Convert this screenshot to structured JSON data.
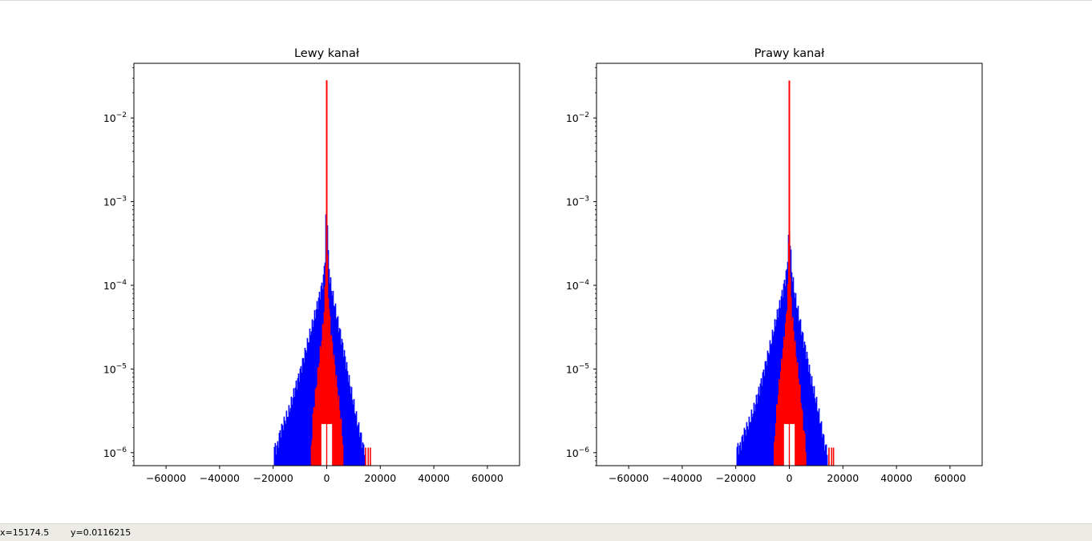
{
  "status": {
    "x_readout": "x=15174.5",
    "y_readout": "y=0.0116215"
  },
  "chart_data": [
    {
      "type": "histogram",
      "title": "Lewy kanał",
      "xlim": [
        -72000,
        72000
      ],
      "ylim": [
        7e-07,
        0.045
      ],
      "y_scale": "log",
      "x_ticks": [
        -60000,
        -40000,
        -20000,
        0,
        20000,
        40000,
        60000
      ],
      "x_tick_labels": [
        "−60000",
        "−40000",
        "−20000",
        "0",
        "20000",
        "40000",
        "60000"
      ],
      "y_ticks": [
        1e-06,
        1e-05,
        0.0001,
        0.001,
        0.01
      ],
      "y_tick_labels": [
        "10",
        "10",
        "10",
        "10",
        "10"
      ],
      "y_tick_exponents": [
        "−6",
        "−5",
        "−4",
        "−3",
        "−2"
      ],
      "grid": false,
      "series": [
        {
          "color": "#0000ff",
          "peak": 0.0055,
          "points": [
            [
              -19500,
              1.15e-06
            ],
            [
              -18500,
              1.15e-06
            ],
            [
              -17500,
              1.7e-06
            ],
            [
              -16000,
              2.3e-06
            ],
            [
              -14000,
              3.2e-06
            ],
            [
              -12000,
              5.5e-06
            ],
            [
              -10000,
              9e-06
            ],
            [
              -8000,
              1.6e-05
            ],
            [
              -6000,
              2.8e-05
            ],
            [
              -4000,
              5e-05
            ],
            [
              -2500,
              8e-05
            ],
            [
              -1200,
              0.00012
            ],
            [
              -500,
              0.00025
            ],
            [
              -150,
              0.0012
            ],
            [
              0,
              0.0055
            ],
            [
              150,
              0.0012
            ],
            [
              500,
              0.00025
            ],
            [
              1200,
              0.00012
            ],
            [
              2500,
              7e-05
            ],
            [
              4000,
              4e-05
            ],
            [
              5500,
              2.3e-05
            ],
            [
              7000,
              1.3e-05
            ],
            [
              8500,
              7e-06
            ],
            [
              10000,
              4e-06
            ],
            [
              11500,
              2.3e-06
            ],
            [
              12800,
              1.6e-06
            ],
            [
              13700,
              1.15e-06
            ],
            [
              14300,
              1.15e-06
            ]
          ]
        },
        {
          "color": "#ff0000",
          "peak": 0.028,
          "points": [
            [
              -5700,
              1.15e-06
            ],
            [
              -5000,
              3e-06
            ],
            [
              -4200,
              5e-06
            ],
            [
              -3300,
              9e-06
            ],
            [
              -2500,
              1.5e-05
            ],
            [
              -1700,
              2.5e-05
            ],
            [
              -900,
              5e-05
            ],
            [
              -400,
              0.00012
            ],
            [
              -100,
              0.0006
            ],
            [
              0,
              0.028
            ],
            [
              100,
              0.0006
            ],
            [
              400,
              0.00012
            ],
            [
              900,
              5e-05
            ],
            [
              1700,
              2.5e-05
            ],
            [
              2500,
              1.5e-05
            ],
            [
              3300,
              9e-06
            ],
            [
              4200,
              5e-06
            ],
            [
              5000,
              3e-06
            ],
            [
              6200,
              1.15e-06
            ]
          ],
          "outliers_x": [
            14500,
            15500,
            16300
          ]
        }
      ]
    },
    {
      "type": "histogram",
      "title": "Prawy kanał",
      "xlim": [
        -72000,
        72000
      ],
      "ylim": [
        7e-07,
        0.045
      ],
      "y_scale": "log",
      "x_ticks": [
        -60000,
        -40000,
        -20000,
        0,
        20000,
        40000,
        60000
      ],
      "x_tick_labels": [
        "−60000",
        "−40000",
        "−20000",
        "0",
        "20000",
        "40000",
        "60000"
      ],
      "y_ticks": [
        1e-06,
        1e-05,
        0.0001,
        0.001,
        0.01
      ],
      "y_tick_labels": [
        "10",
        "10",
        "10",
        "10",
        "10"
      ],
      "y_tick_exponents": [
        "−6",
        "−5",
        "−4",
        "−3",
        "−2"
      ],
      "grid": false,
      "series": [
        {
          "color": "#0000ff",
          "peak": 0.005,
          "points": [
            [
              -19500,
              1.15e-06
            ],
            [
              -18500,
              1.15e-06
            ],
            [
              -17000,
              1.7e-06
            ],
            [
              -15000,
              2.3e-06
            ],
            [
              -13000,
              3.5e-06
            ],
            [
              -11000,
              6e-06
            ],
            [
              -9000,
              1.1e-05
            ],
            [
              -7000,
              2e-05
            ],
            [
              -5000,
              3.8e-05
            ],
            [
              -3500,
              6e-05
            ],
            [
              -2000,
              0.0001
            ],
            [
              -900,
              0.00015
            ],
            [
              -300,
              0.00035
            ],
            [
              -100,
              0.0012
            ],
            [
              0,
              0.005
            ],
            [
              100,
              0.0012
            ],
            [
              300,
              0.00035
            ],
            [
              900,
              0.00015
            ],
            [
              2000,
              8e-05
            ],
            [
              3500,
              4.5e-05
            ],
            [
              5000,
              2.5e-05
            ],
            [
              6500,
              1.5e-05
            ],
            [
              8000,
              8e-06
            ],
            [
              9500,
              5e-06
            ],
            [
              11000,
              3e-06
            ],
            [
              12500,
              1.7e-06
            ],
            [
              13500,
              1.15e-06
            ],
            [
              14300,
              1.15e-06
            ]
          ]
        },
        {
          "color": "#ff0000",
          "peak": 0.028,
          "points": [
            [
              -5600,
              1.15e-06
            ],
            [
              -5000,
              2.5e-06
            ],
            [
              -4300,
              4.5e-06
            ],
            [
              -3500,
              8e-06
            ],
            [
              -2700,
              1.3e-05
            ],
            [
              -1900,
              2.3e-05
            ],
            [
              -1000,
              4.5e-05
            ],
            [
              -400,
              0.00011
            ],
            [
              -100,
              0.0005
            ],
            [
              0,
              0.028
            ],
            [
              100,
              0.0005
            ],
            [
              400,
              0.00011
            ],
            [
              1000,
              4.5e-05
            ],
            [
              1900,
              2.3e-05
            ],
            [
              2700,
              1.3e-05
            ],
            [
              3500,
              8e-06
            ],
            [
              4300,
              4.5e-06
            ],
            [
              5000,
              2.5e-06
            ],
            [
              6200,
              1.15e-06
            ]
          ],
          "outliers_x": [
            14800,
            15800,
            16500
          ]
        }
      ]
    }
  ]
}
